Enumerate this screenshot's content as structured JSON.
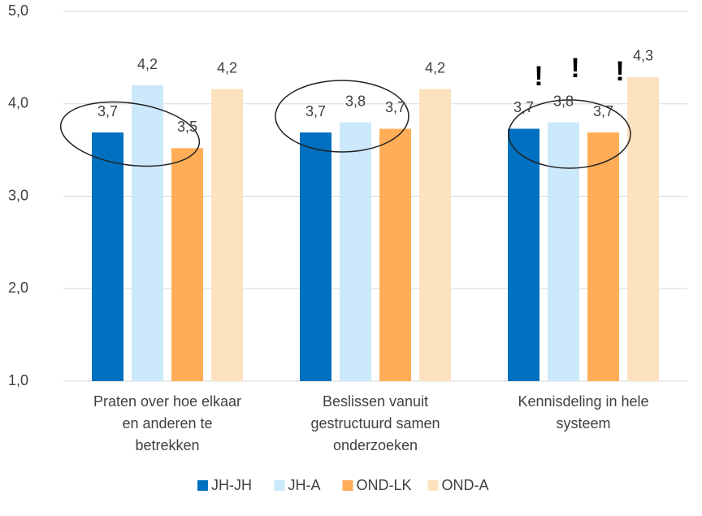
{
  "chart_data": {
    "type": "bar",
    "categories": [
      [
        "Praten over hoe elkaar",
        "en anderen te",
        "betrekken"
      ],
      [
        "Beslissen vanuit",
        "gestructuurd samen",
        "onderzoeken"
      ],
      [
        "Kennisdeling in hele",
        "systeem"
      ]
    ],
    "series": [
      {
        "name": "JH-JH",
        "color": "#0070c0",
        "values": [
          3.69,
          3.69,
          3.73
        ],
        "value_labels": [
          "3,7",
          "3,7",
          "3,7"
        ]
      },
      {
        "name": "JH-A",
        "color": "#cce9fb",
        "values": [
          4.2,
          3.8,
          3.8
        ],
        "value_labels": [
          "4,2",
          "3,8",
          "3,8"
        ]
      },
      {
        "name": "OND-LK",
        "color": "#ffad56",
        "values": [
          3.52,
          3.73,
          3.69
        ],
        "value_labels": [
          "3,5",
          "3,7",
          "3,7"
        ]
      },
      {
        "name": "OND-A",
        "color": "#fde2c0",
        "values": [
          4.16,
          4.16,
          4.29
        ],
        "value_labels": [
          "4,2",
          "4,2",
          "4,3"
        ]
      }
    ],
    "ylim": [
      1,
      5
    ],
    "yticks": [
      {
        "value": 1,
        "label": "1,0"
      },
      {
        "value": 2,
        "label": "2,0"
      },
      {
        "value": 3,
        "label": "3,0"
      },
      {
        "value": 4,
        "label": "4,0"
      },
      {
        "value": 5,
        "label": "5,0"
      }
    ],
    "grid": true,
    "legend": "bottom",
    "annotations": [
      "!",
      "!",
      "!"
    ]
  }
}
